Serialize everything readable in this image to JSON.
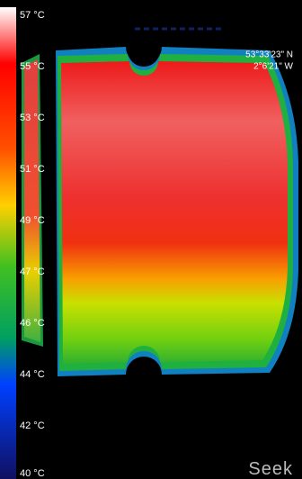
{
  "scale": {
    "labels": [
      "57 °C",
      "55 °C",
      "53 °C",
      "51 °C",
      "49 °C",
      "47 °C",
      "46 °C",
      "44 °C",
      "42 °C",
      "40 °C"
    ]
  },
  "location": {
    "latitude": "53°33'23\" N",
    "longitude": "2°6'21\" W"
  },
  "brand": {
    "logo": "Seek"
  }
}
